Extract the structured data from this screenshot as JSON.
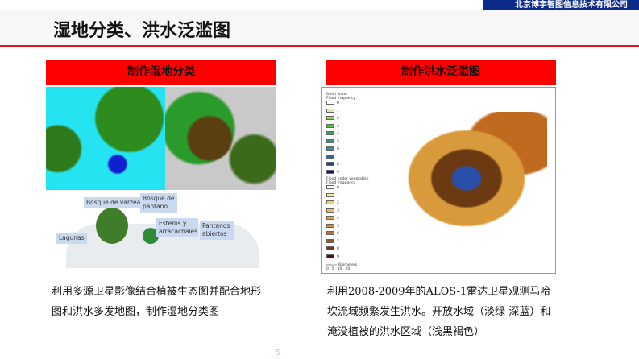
{
  "header": {
    "company": "北京博宇智图信息技术有限公司",
    "title": "湿地分类、洪水泛滥图"
  },
  "left": {
    "heading": "制作湿地分类",
    "figure_labels": [
      "Bosque de varzea",
      "Bosque de pantano",
      "Esteros y arracachales",
      "Pantanos abiertos",
      "Lagunas"
    ],
    "description": "利用多源卫星影像结合植被生态图并配合地形图和洪水多发地图，制作湿地分类图"
  },
  "right": {
    "heading": "制作洪水泛滥图",
    "legend": {
      "open_water": "Open water",
      "flood_frequency": "Flood frequency",
      "flood_under_vegetation": "Flood under vegetation",
      "classes": [
        "0",
        "1",
        "2",
        "3",
        "4",
        "5",
        "6",
        "7",
        "8",
        "9"
      ],
      "open_water_colors": [
        "#ffffff",
        "#d9f0a3",
        "#8fdc4a",
        "#3ccf1e",
        "#3aa84a",
        "#2f9a82",
        "#2a8ea6",
        "#2a66a8",
        "#1e3f94",
        "#0a1a7a"
      ],
      "vegetation_colors": [
        "#ffffff",
        "#fbe9a6",
        "#f6cf5e",
        "#f3bb48",
        "#eba43a",
        "#dd8a2c",
        "#c56d22",
        "#a5501a",
        "#7e3412",
        "#5a0d0a"
      ],
      "scale_label": "Kilometers",
      "scale_ticks": [
        "0",
        "5",
        "10",
        "20"
      ]
    },
    "description": "利用2008-2009年的ALOS-1雷达卫星观测马哈坎流域频繁发生洪水。开放水域（淡绿-深蓝）和淹没植被的洪水区域（浅黑褐色）"
  },
  "footer": {
    "page": "- 5 -"
  }
}
